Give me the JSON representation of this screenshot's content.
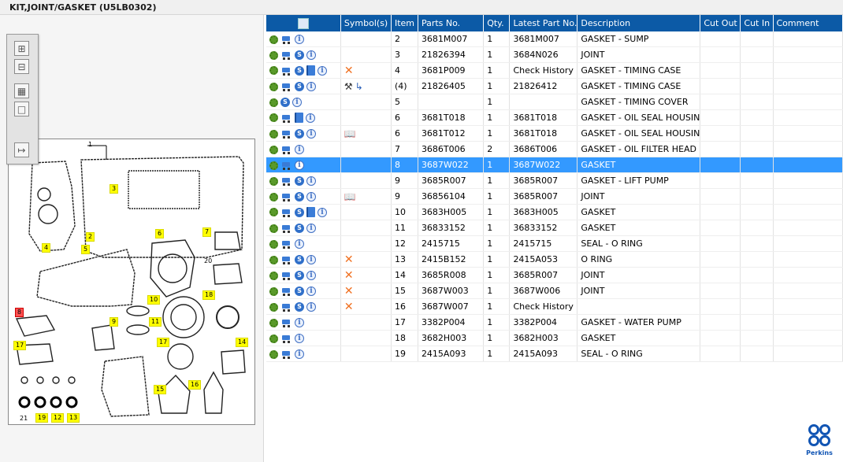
{
  "window": {
    "title": "KIT,JOINT/GASKET (U5LB0302)"
  },
  "toolbox": {
    "zoom_in_icon": "zoom-in-icon",
    "zoom_out_icon": "zoom-out-icon",
    "fit_icon": "fit-view-icon",
    "actual_size_icon": "actual-size-icon",
    "export_icon": "export-list-icon"
  },
  "drawing": {
    "callouts": [
      {
        "label": "1",
        "style": "plain"
      },
      {
        "label": "2",
        "style": "yellow"
      },
      {
        "label": "3",
        "style": "yellow"
      },
      {
        "label": "4",
        "style": "yellow"
      },
      {
        "label": "5",
        "style": "yellow"
      },
      {
        "label": "6",
        "style": "yellow"
      },
      {
        "label": "7",
        "style": "yellow"
      },
      {
        "label": "8",
        "style": "red"
      },
      {
        "label": "9",
        "style": "yellow"
      },
      {
        "label": "10",
        "style": "yellow"
      },
      {
        "label": "11",
        "style": "yellow"
      },
      {
        "label": "13",
        "style": "yellow"
      },
      {
        "label": "12",
        "style": "yellow"
      },
      {
        "label": "14",
        "style": "yellow"
      },
      {
        "label": "15",
        "style": "yellow"
      },
      {
        "label": "16",
        "style": "yellow"
      },
      {
        "label": "17",
        "style": "yellow"
      },
      {
        "label": "17",
        "style": "yellow"
      },
      {
        "label": "18",
        "style": "yellow"
      },
      {
        "label": "19",
        "style": "yellow"
      },
      {
        "label": "20",
        "style": "plain"
      },
      {
        "label": "21",
        "style": "plain"
      }
    ]
  },
  "table": {
    "columns": [
      "",
      "Symbol(s)",
      "Item",
      "Parts No.",
      "Qty.",
      "Latest Part No.",
      "Description",
      "Cut Out",
      "Cut In",
      "Comment"
    ],
    "header_icon": "search-document-icon",
    "rows": [
      {
        "icons": [
          "gear",
          "cart",
          "info"
        ],
        "symbols": [],
        "item": "2",
        "part": "3681M007",
        "qty": "1",
        "latest": "3681M007",
        "desc": "GASKET - SUMP",
        "selected": false
      },
      {
        "icons": [
          "gear",
          "cart",
          "s",
          "info"
        ],
        "symbols": [],
        "item": "3",
        "part": "21826394",
        "qty": "1",
        "latest": "3684N026",
        "desc": "JOINT",
        "selected": false
      },
      {
        "icons": [
          "gear",
          "cart",
          "s",
          "book",
          "info"
        ],
        "symbols": [
          "x"
        ],
        "item": "4",
        "part": "3681P009",
        "qty": "1",
        "latest": "Check History",
        "desc": "GASKET - TIMING CASE",
        "selected": false
      },
      {
        "icons": [
          "gear",
          "cart",
          "s",
          "info"
        ],
        "symbols": [
          "pin",
          "branch"
        ],
        "item": "(4)",
        "part": "21826405",
        "qty": "1",
        "latest": "21826412",
        "desc": "GASKET - TIMING CASE",
        "selected": false
      },
      {
        "icons": [
          "gear",
          "s",
          "info"
        ],
        "symbols": [],
        "item": "5",
        "part": "",
        "qty": "1",
        "latest": "",
        "desc": "GASKET - TIMING COVER",
        "selected": false
      },
      {
        "icons": [
          "gear",
          "cart",
          "book",
          "info"
        ],
        "symbols": [],
        "item": "6",
        "part": "3681T018",
        "qty": "1",
        "latest": "3681T018",
        "desc": "GASKET - OIL SEAL HOUSIN",
        "selected": false
      },
      {
        "icons": [
          "gear",
          "cart",
          "s",
          "info"
        ],
        "symbols": [
          "view"
        ],
        "item": "6",
        "part": "3681T012",
        "qty": "1",
        "latest": "3681T018",
        "desc": "GASKET - OIL SEAL HOUSIN",
        "selected": false
      },
      {
        "icons": [
          "gear",
          "cart",
          "info"
        ],
        "symbols": [],
        "item": "7",
        "part": "3686T006",
        "qty": "2",
        "latest": "3686T006",
        "desc": "GASKET - OIL FILTER HEAD",
        "selected": false
      },
      {
        "icons": [
          "gear",
          "cart",
          "info"
        ],
        "symbols": [],
        "item": "8",
        "part": "3687W022",
        "qty": "1",
        "latest": "3687W022",
        "desc": "GASKET",
        "selected": true
      },
      {
        "icons": [
          "gear",
          "cart",
          "s",
          "info"
        ],
        "symbols": [],
        "item": "9",
        "part": "3685R007",
        "qty": "1",
        "latest": "3685R007",
        "desc": "GASKET - LIFT PUMP",
        "selected": false
      },
      {
        "icons": [
          "gear",
          "cart",
          "s",
          "info"
        ],
        "symbols": [
          "view"
        ],
        "item": "9",
        "part": "36856104",
        "qty": "1",
        "latest": "3685R007",
        "desc": "JOINT",
        "selected": false
      },
      {
        "icons": [
          "gear",
          "cart",
          "s",
          "book",
          "info"
        ],
        "symbols": [],
        "item": "10",
        "part": "3683H005",
        "qty": "1",
        "latest": "3683H005",
        "desc": "GASKET",
        "selected": false
      },
      {
        "icons": [
          "gear",
          "cart",
          "s",
          "info"
        ],
        "symbols": [],
        "item": "11",
        "part": "36833152",
        "qty": "1",
        "latest": "36833152",
        "desc": "GASKET",
        "selected": false
      },
      {
        "icons": [
          "gear",
          "cart",
          "info"
        ],
        "symbols": [],
        "item": "12",
        "part": "2415715",
        "qty": "1",
        "latest": "2415715",
        "desc": "SEAL - O RING",
        "selected": false
      },
      {
        "icons": [
          "gear",
          "cart",
          "s",
          "info"
        ],
        "symbols": [
          "x"
        ],
        "item": "13",
        "part": "2415B152",
        "qty": "1",
        "latest": "2415A053",
        "desc": "O RING",
        "selected": false
      },
      {
        "icons": [
          "gear",
          "cart",
          "s",
          "info"
        ],
        "symbols": [
          "x"
        ],
        "item": "14",
        "part": "3685R008",
        "qty": "1",
        "latest": "3685R007",
        "desc": "JOINT",
        "selected": false
      },
      {
        "icons": [
          "gear",
          "cart",
          "s",
          "info"
        ],
        "symbols": [
          "x"
        ],
        "item": "15",
        "part": "3687W003",
        "qty": "1",
        "latest": "3687W006",
        "desc": "JOINT",
        "selected": false
      },
      {
        "icons": [
          "gear",
          "cart",
          "s",
          "info"
        ],
        "symbols": [
          "x"
        ],
        "item": "16",
        "part": "3687W007",
        "qty": "1",
        "latest": "Check History",
        "desc": "",
        "selected": false
      },
      {
        "icons": [
          "gear",
          "cart",
          "info"
        ],
        "symbols": [],
        "item": "17",
        "part": "3382P004",
        "qty": "1",
        "latest": "3382P004",
        "desc": "GASKET - WATER PUMP",
        "selected": false
      },
      {
        "icons": [
          "gear",
          "cart",
          "info"
        ],
        "symbols": [],
        "item": "18",
        "part": "3682H003",
        "qty": "1",
        "latest": "3682H003",
        "desc": "GASKET",
        "selected": false
      },
      {
        "icons": [
          "gear",
          "cart",
          "info"
        ],
        "symbols": [],
        "item": "19",
        "part": "2415A093",
        "qty": "1",
        "latest": "2415A093",
        "desc": "SEAL - O RING",
        "selected": false
      }
    ]
  },
  "logo": {
    "text": "Perkins",
    "icon": "perkins-logo-icon"
  },
  "colors": {
    "header": "#0c5aa6",
    "selection": "#3399ff",
    "callout": "#ffff00",
    "x_symbol": "#f07020"
  }
}
